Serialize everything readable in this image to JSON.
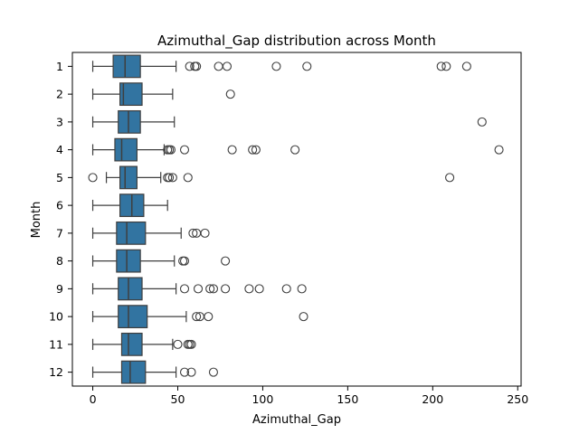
{
  "chart_data": {
    "type": "boxplot",
    "orientation": "horizontal",
    "title": "Azimuthal_Gap distribution across Month",
    "xlabel": "Azimuthal_Gap",
    "ylabel": "Month",
    "xlim": [
      -12,
      252
    ],
    "xticks": [
      0,
      50,
      100,
      150,
      200,
      250
    ],
    "categories": [
      "1",
      "2",
      "3",
      "4",
      "5",
      "6",
      "7",
      "8",
      "9",
      "10",
      "11",
      "12"
    ],
    "box_color": "#3274a1",
    "line_color": "#3f3f3f",
    "grid": false,
    "boxes": [
      {
        "category": "1",
        "whislo": 0,
        "q1": 12,
        "med": 19,
        "q3": 28,
        "whishi": 49,
        "fliers": [
          57,
          60,
          61,
          74,
          79,
          108,
          126,
          205,
          208,
          220
        ]
      },
      {
        "category": "2",
        "whislo": 0,
        "q1": 16,
        "med": 18,
        "q3": 29,
        "whishi": 47,
        "fliers": [
          81
        ]
      },
      {
        "category": "3",
        "whislo": 0,
        "q1": 15,
        "med": 21,
        "q3": 28,
        "whishi": 48,
        "fliers": [
          229
        ]
      },
      {
        "category": "4",
        "whislo": 0,
        "q1": 13,
        "med": 17,
        "q3": 26,
        "whishi": 42,
        "fliers": [
          44,
          45,
          46,
          54,
          82,
          94,
          96,
          119,
          239
        ]
      },
      {
        "category": "5",
        "whislo": 8,
        "q1": 16,
        "med": 19,
        "q3": 26,
        "whishi": 40,
        "fliers": [
          0,
          44,
          45,
          47,
          56,
          210
        ]
      },
      {
        "category": "6",
        "whislo": 0,
        "q1": 16,
        "med": 23,
        "q3": 30,
        "whishi": 44,
        "fliers": []
      },
      {
        "category": "7",
        "whislo": 0,
        "q1": 14,
        "med": 20,
        "q3": 31,
        "whishi": 52,
        "fliers": [
          59,
          61,
          66
        ]
      },
      {
        "category": "8",
        "whislo": 0,
        "q1": 14,
        "med": 20,
        "q3": 28,
        "whishi": 48,
        "fliers": [
          53,
          54,
          78
        ]
      },
      {
        "category": "9",
        "whislo": 0,
        "q1": 15,
        "med": 21,
        "q3": 29,
        "whishi": 49,
        "fliers": [
          54,
          62,
          69,
          71,
          78,
          92,
          98,
          114,
          123
        ]
      },
      {
        "category": "10",
        "whislo": 0,
        "q1": 15,
        "med": 21,
        "q3": 32,
        "whishi": 55,
        "fliers": [
          61,
          63,
          68,
          124
        ]
      },
      {
        "category": "11",
        "whislo": 0,
        "q1": 17,
        "med": 21,
        "q3": 29,
        "whishi": 47,
        "fliers": [
          50,
          56,
          57,
          58
        ]
      },
      {
        "category": "12",
        "whislo": 0,
        "q1": 17,
        "med": 22,
        "q3": 31,
        "whishi": 49,
        "fliers": [
          54,
          58,
          71
        ]
      }
    ]
  }
}
